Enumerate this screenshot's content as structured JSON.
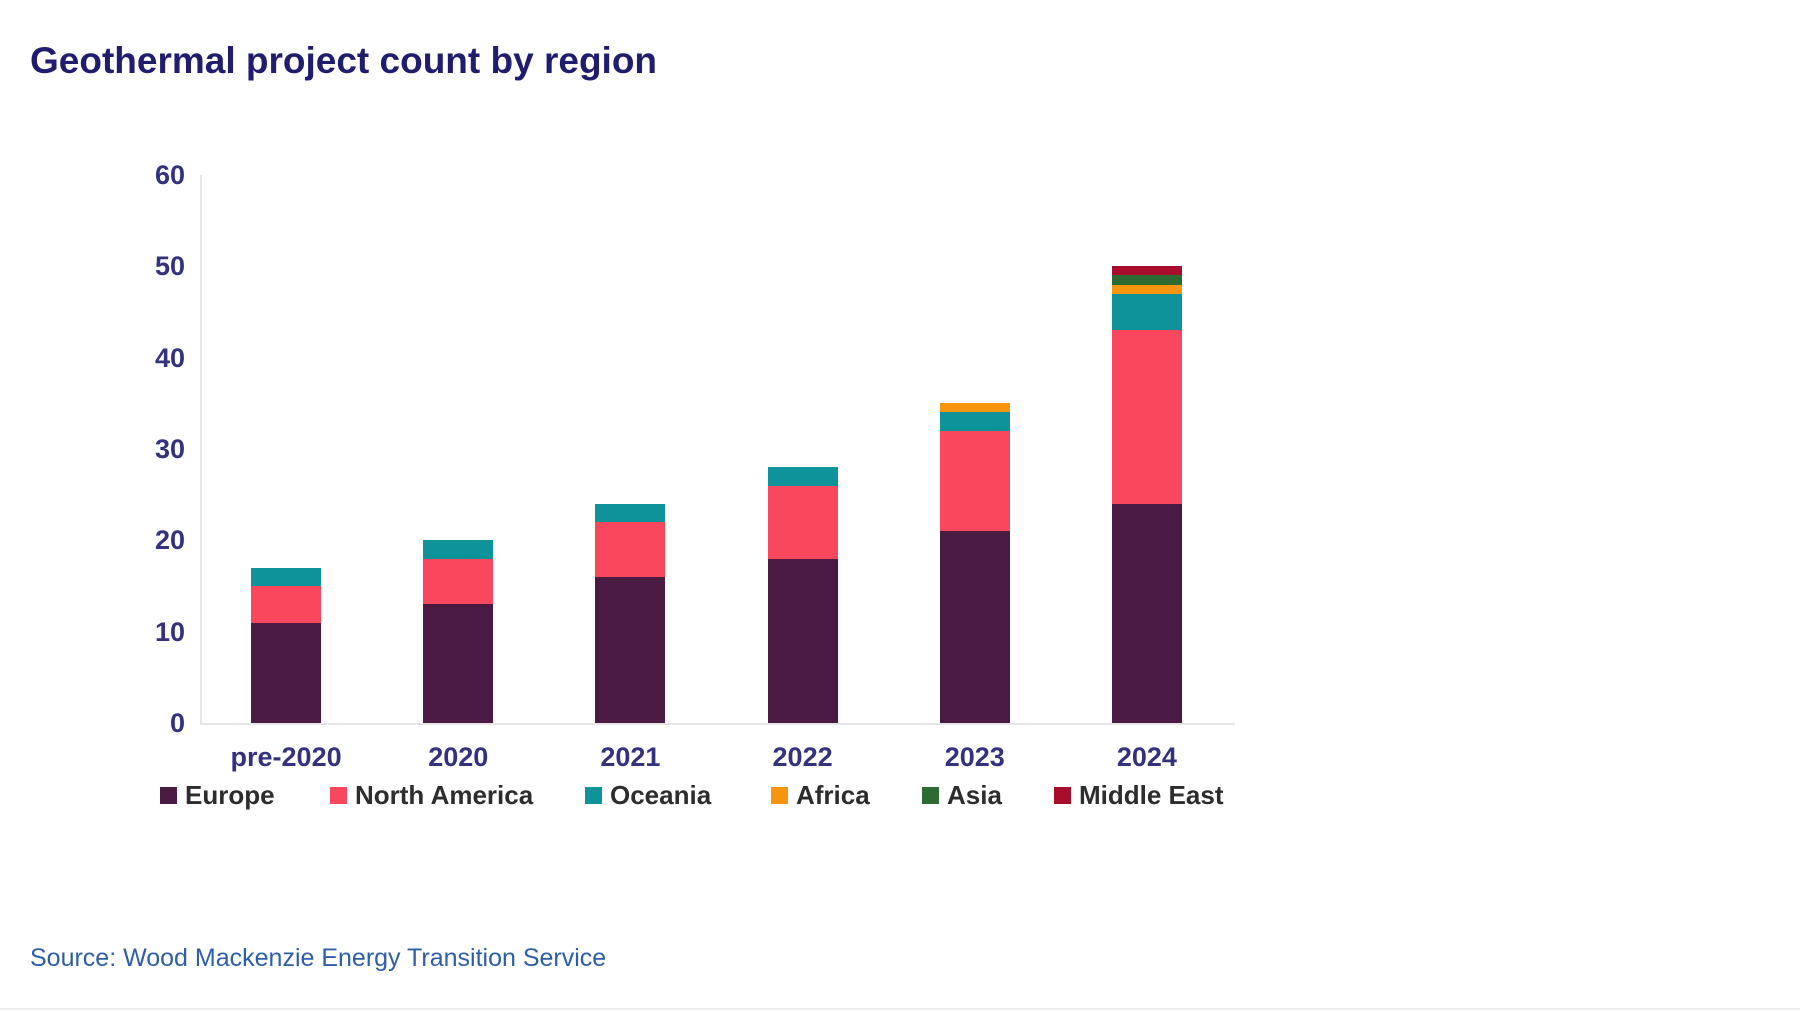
{
  "page": {
    "title": "Geothermal project count by region",
    "source": "Source: Wood Mackenzie Energy Transition Service"
  },
  "colors": {
    "title_text": "#201c6e",
    "axis_tick_text": "#34317d",
    "legend_text": "#2d2d2d",
    "source_text": "#2f5ea8",
    "axis_line": "#e5e5e5",
    "background": "#ffffff"
  },
  "chart_data": {
    "type": "bar",
    "stacked": true,
    "title": "Geothermal project count by region",
    "categories": [
      "pre-2020",
      "2020",
      "2021",
      "2022",
      "2023",
      "2024"
    ],
    "series": [
      {
        "name": "Europe",
        "color": "#4a1a42",
        "values": [
          11,
          13,
          16,
          18,
          21,
          24
        ]
      },
      {
        "name": "North America",
        "color": "#f9485e",
        "values": [
          4,
          5,
          6,
          8,
          11,
          19
        ]
      },
      {
        "name": "Oceania",
        "color": "#0f939a",
        "values": [
          2,
          2,
          2,
          2,
          2,
          4
        ]
      },
      {
        "name": "Africa",
        "color": "#f8950f",
        "values": [
          0,
          0,
          0,
          0,
          1,
          1
        ]
      },
      {
        "name": "Asia",
        "color": "#2c6b32",
        "values": [
          0,
          0,
          0,
          0,
          0,
          1
        ]
      },
      {
        "name": "Middle East",
        "color": "#a80d2b",
        "values": [
          0,
          0,
          0,
          0,
          0,
          1
        ]
      }
    ],
    "totals": [
      17,
      20,
      24,
      28,
      35,
      50
    ],
    "y_axis": {
      "min": 0,
      "max": 60,
      "tick_interval": 10,
      "ticks": [
        0,
        10,
        20,
        30,
        40,
        50,
        60
      ],
      "label": ""
    },
    "x_axis": {
      "label": ""
    },
    "legend_position": "bottom",
    "grid": false
  }
}
